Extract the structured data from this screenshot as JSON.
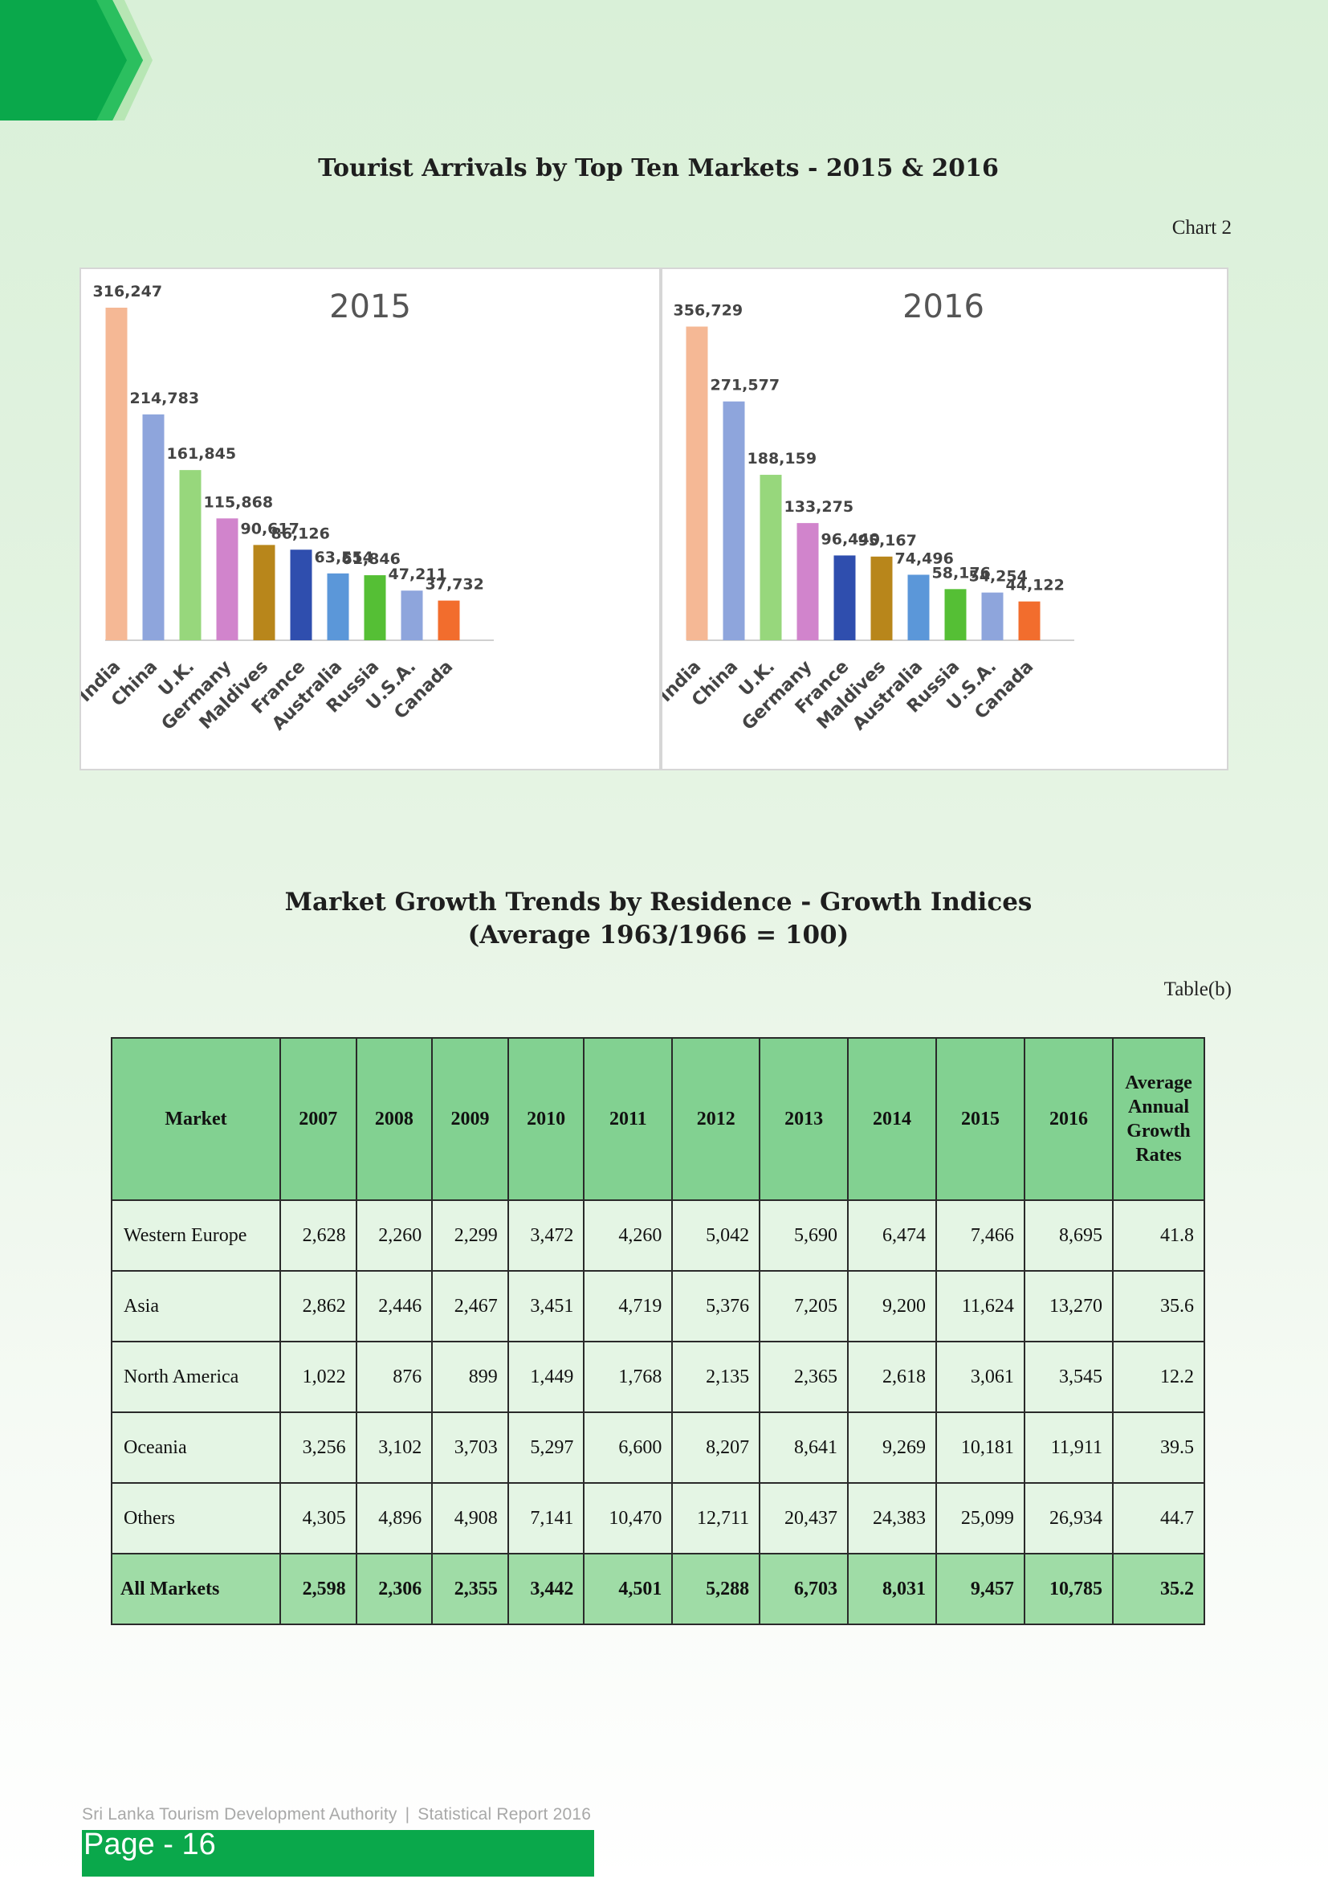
{
  "header": {
    "chart_title": "Tourist Arrivals by Top Ten Markets - 2015 & 2016",
    "chart_ref": "Chart 2"
  },
  "colors": {
    "brand_green": "#0aa84b",
    "light_green": "#82d191",
    "India": "#f5b895",
    "China": "#8ea5dc",
    "U.K.": "#97d77c",
    "Germany": "#d184cc",
    "Maldives": "#b8861b",
    "France": "#2f4eae",
    "Australia": "#5b97d9",
    "Russia": "#55bf35",
    "U.S.A.": "#8ea5dc",
    "Canada": "#f26d2d"
  },
  "chart_data": [
    {
      "type": "bar",
      "title": "2015",
      "categories": [
        "India",
        "China",
        "U.K.",
        "Germany",
        "Maldives",
        "France",
        "Australia",
        "Russia",
        "U.S.A.",
        "Canada"
      ],
      "values": [
        316247,
        214783,
        161845,
        115868,
        90617,
        86126,
        63554,
        61846,
        47211,
        37732
      ],
      "labels": [
        "316,247",
        "214,783",
        "161,845",
        "115,868",
        "90,617",
        "86,126",
        "63,554",
        "61,846",
        "47,211",
        "37,732"
      ],
      "ylim": [
        0,
        330000
      ],
      "grid": false,
      "legend": "none"
    },
    {
      "type": "bar",
      "title": "2016",
      "categories": [
        "India",
        "China",
        "U.K.",
        "Germany",
        "France",
        "Maldives",
        "Australia",
        "Russia",
        "U.S.A.",
        "Canada"
      ],
      "values": [
        356729,
        271577,
        188159,
        133275,
        96440,
        95167,
        74496,
        58176,
        54254,
        44122
      ],
      "labels": [
        "356,729",
        "271,577",
        "188,159",
        "133,275",
        "96,440",
        "95,167",
        "74,496",
        "58,176",
        "54,254",
        "44,122"
      ],
      "ylim": [
        0,
        370000
      ],
      "grid": false,
      "legend": "none"
    }
  ],
  "table_section": {
    "title_line1": "Market Growth Trends by Residence - Growth Indices",
    "title_line2": "(Average 1963/1966 = 100)",
    "ref": "Table(b)",
    "headers": {
      "market": "Market",
      "years": [
        "2007",
        "2008",
        "2009",
        "2010",
        "2011",
        "2012",
        "2013",
        "2014",
        "2015",
        "2016"
      ],
      "avg_lines": [
        "Average",
        "Annual",
        "Growth",
        "Rates"
      ]
    },
    "rows": [
      {
        "market": "Western Europe",
        "values": [
          "2,628",
          "2,260",
          "2,299",
          "3,472",
          "4,260",
          "5,042",
          "5,690",
          "6,474",
          "7,466",
          "8,695"
        ],
        "avg": "41.8"
      },
      {
        "market": "Asia",
        "values": [
          "2,862",
          "2,446",
          "2,467",
          "3,451",
          "4,719",
          "5,376",
          "7,205",
          "9,200",
          "11,624",
          "13,270"
        ],
        "avg": "35.6"
      },
      {
        "market": "North America",
        "values": [
          "1,022",
          "876",
          "899",
          "1,449",
          "1,768",
          "2,135",
          "2,365",
          "2,618",
          "3,061",
          "3,545"
        ],
        "avg": "12.2"
      },
      {
        "market": "Oceania",
        "values": [
          "3,256",
          "3,102",
          "3,703",
          "5,297",
          "6,600",
          "8,207",
          "8,641",
          "9,269",
          "10,181",
          "11,911"
        ],
        "avg": "39.5"
      },
      {
        "market": "Others",
        "values": [
          "4,305",
          "4,896",
          "4,908",
          "7,141",
          "10,470",
          "12,711",
          "20,437",
          "24,383",
          "25,099",
          "26,934"
        ],
        "avg": "44.7"
      }
    ],
    "total": {
      "market": "All Markets",
      "values": [
        "2,598",
        "2,306",
        "2,355",
        "3,442",
        "4,501",
        "5,288",
        "6,703",
        "8,031",
        "9,457",
        "10,785"
      ],
      "avg": "35.2"
    }
  },
  "footer": {
    "org": "Sri Lanka Tourism Development Authority",
    "separator": "|",
    "report": "Statistical Report 2016",
    "page": "Page - 16"
  }
}
